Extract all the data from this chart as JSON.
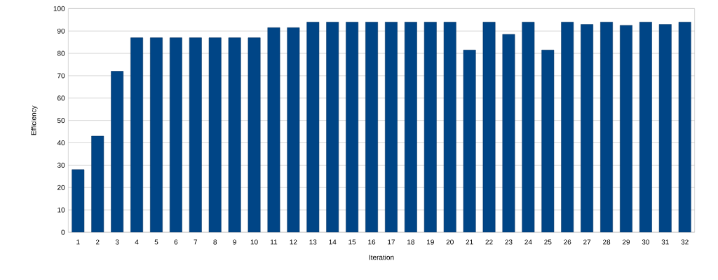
{
  "chart_data": {
    "type": "bar",
    "xlabel": "Iteration",
    "ylabel": "Efficiency",
    "categories": [
      "1",
      "2",
      "3",
      "4",
      "5",
      "6",
      "7",
      "8",
      "9",
      "10",
      "11",
      "12",
      "13",
      "14",
      "15",
      "16",
      "17",
      "18",
      "19",
      "20",
      "21",
      "22",
      "23",
      "24",
      "25",
      "26",
      "27",
      "28",
      "29",
      "30",
      "31",
      "32"
    ],
    "values": [
      28,
      43,
      72,
      87,
      87,
      87,
      87,
      87,
      87,
      87,
      91.5,
      91.5,
      94,
      94,
      94,
      94,
      94,
      94,
      94,
      94,
      81.5,
      94,
      88.5,
      94,
      81.5,
      94,
      93,
      94,
      92.5,
      94,
      93,
      94
    ],
    "color": "#004586",
    "ylim": [
      0,
      100
    ],
    "yticks": [
      0,
      10,
      20,
      30,
      40,
      50,
      60,
      70,
      80,
      90,
      100
    ],
    "grid": "y"
  }
}
